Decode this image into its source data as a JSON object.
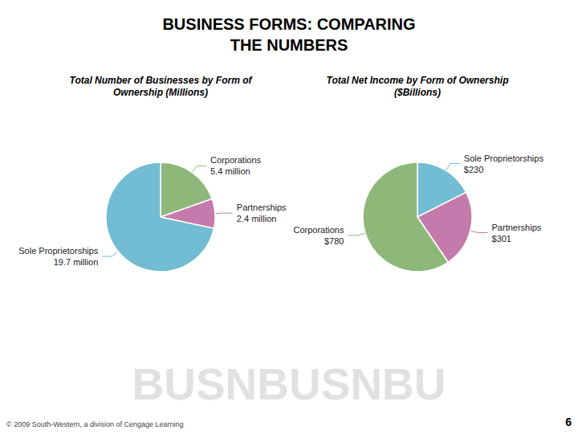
{
  "chart_data": [
    {
      "type": "pie",
      "title": "BUSINESS FORMS: COMPARING\nTHE NUMBERS",
      "subtitle": "Total Number of Businesses by Form of\nOwnership (Millions)",
      "categories": [
        "Corporations",
        "Partnerships",
        "Sole Proprietorships"
      ],
      "values": [
        5.4,
        2.4,
        19.7
      ],
      "value_labels": [
        "5.4 million",
        "2.4 million",
        "19.7 million"
      ],
      "colors": [
        "#8db87a",
        "#c47aaa",
        "#72bcd4"
      ],
      "data_labels": true,
      "annotations": [
        "BUSNBUSNBU",
        "© 2009 South-Western, a division of Cengage Learning",
        "6"
      ]
    },
    {
      "type": "pie",
      "subtitle": "Total Net Income by Form of Ownership\n($Billions)",
      "categories": [
        "Sole Proprietorships",
        "Partnerships",
        "Corporations"
      ],
      "values": [
        230,
        301,
        780
      ],
      "value_labels": [
        "$230",
        "$301",
        "$780"
      ],
      "colors": [
        "#72bcd4",
        "#c47aaa",
        "#8db87a"
      ],
      "data_labels": true
    }
  ]
}
